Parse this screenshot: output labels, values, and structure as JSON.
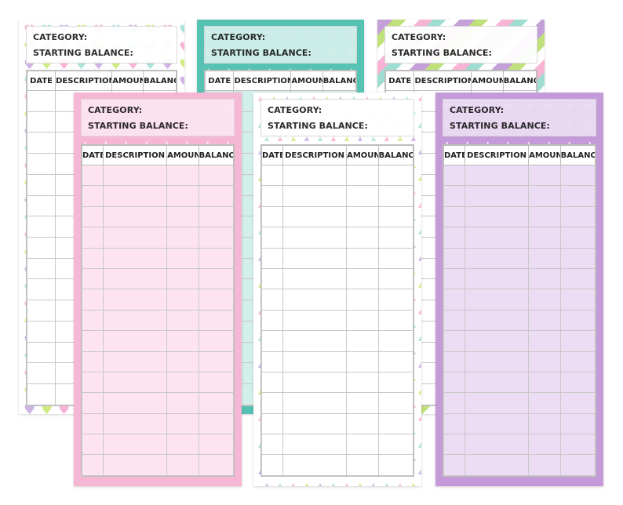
{
  "labels": {
    "category": "CATEGORY:",
    "starting_balance": "STARTING BALANCE:"
  },
  "columns": [
    "DATE",
    "DESCRIPTION",
    "AMOUNT",
    "BALANCE"
  ],
  "cards": [
    {
      "name": "hearts",
      "pattern": "hearts",
      "colors": [
        "#f7a8cf",
        "#9fe0d4",
        "#c6a6e0",
        "#c9e86e"
      ]
    },
    {
      "name": "mint-crosses",
      "pattern": "crosses",
      "colors": [
        "#56c2b3",
        "#ffffff"
      ]
    },
    {
      "name": "diagonal-stripes",
      "pattern": "stripes",
      "colors": [
        "#c59fd8",
        "#bfe07a",
        "#f7b4d5",
        "#9fdcd2"
      ]
    },
    {
      "name": "pink-crosses",
      "pattern": "crosses",
      "colors": [
        "#f6b7d5",
        "#ffffff"
      ]
    },
    {
      "name": "triangles",
      "pattern": "triangles",
      "colors": [
        "#f7a8cf",
        "#9fe0d4",
        "#c6a6e0",
        "#c9e86e"
      ]
    },
    {
      "name": "purple-crosses",
      "pattern": "crosses",
      "colors": [
        "#c49ad8",
        "#ffffff"
      ]
    }
  ]
}
